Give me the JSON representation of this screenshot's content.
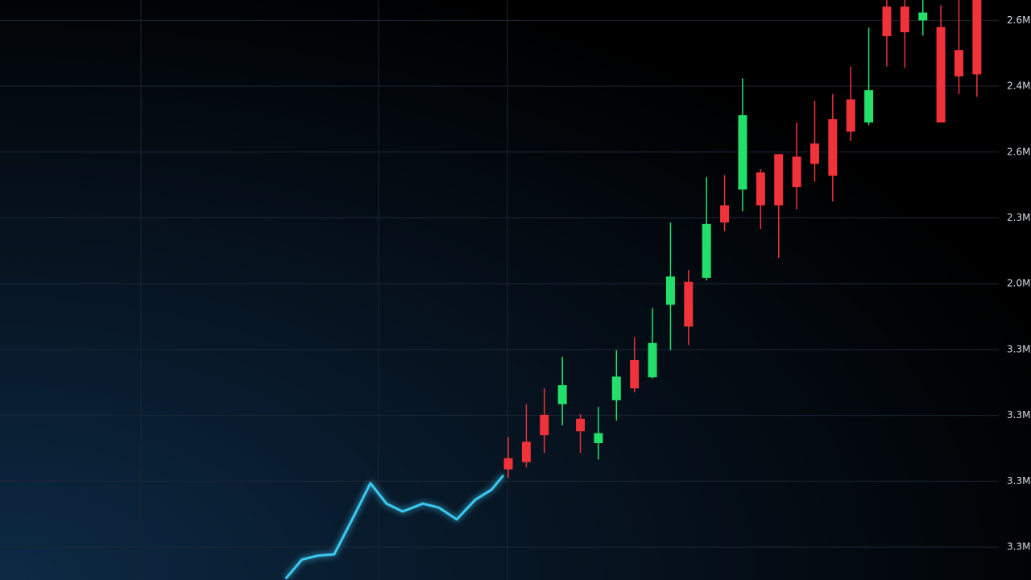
{
  "chart_data": {
    "type": "candlestick",
    "x": [
      0,
      1,
      2,
      3,
      4,
      5,
      6,
      7,
      8,
      9,
      10,
      11,
      12,
      13,
      14,
      15,
      16,
      17,
      18,
      19,
      20,
      21,
      22,
      23,
      24,
      25,
      26
    ],
    "open": [
      2.35,
      2.6,
      3.01,
      3.17,
      2.95,
      2.58,
      3.23,
      3.84,
      3.58,
      4.68,
      5.03,
      5.09,
      6.19,
      6.43,
      6.69,
      6.97,
      6.93,
      7.13,
      7.5,
      7.8,
      7.45,
      9.21,
      9.21,
      9.0,
      8.9,
      8.55,
      9.31
    ],
    "high": [
      2.67,
      3.17,
      3.41,
      3.89,
      3.02,
      3.13,
      3.99,
      4.19,
      4.63,
      5.93,
      5.21,
      6.62,
      6.65,
      8.12,
      6.74,
      6.97,
      7.45,
      7.78,
      7.88,
      8.3,
      8.89,
      9.31,
      9.31,
      9.31,
      9.23,
      9.31,
      9.31
    ],
    "low": [
      2.05,
      2.21,
      2.43,
      2.85,
      2.43,
      2.33,
      2.92,
      3.35,
      3.56,
      3.99,
      4.07,
      5.05,
      5.8,
      6.1,
      5.83,
      5.39,
      6.13,
      6.55,
      6.25,
      7.17,
      7.41,
      8.3,
      8.28,
      8.77,
      7.45,
      7.88,
      7.84
    ],
    "close": [
      2.18,
      2.29,
      2.7,
      3.46,
      2.76,
      2.73,
      3.59,
      3.41,
      4.1,
      5.11,
      4.35,
      5.91,
      5.93,
      7.56,
      6.19,
      6.19,
      6.47,
      6.82,
      6.64,
      7.31,
      7.94,
      8.76,
      8.82,
      9.12,
      7.45,
      8.15,
      8.18
    ],
    "up_color": "#22e06a",
    "down_color": "#f0323a",
    "line": {
      "color": "#3cc8f0",
      "x": [
        -12.35,
        -11.45,
        -10.56,
        -9.66,
        -8.55,
        -7.65,
        -6.76,
        -5.86,
        -4.74,
        -3.85,
        -2.86,
        -1.83,
        -0.94,
        -0.27
      ],
      "values": [
        0.52,
        0.81,
        0.87,
        0.89,
        1.48,
        1.97,
        1.66,
        1.54,
        1.66,
        1.6,
        1.42,
        1.72,
        1.87,
        2.09
      ]
    },
    "xlim": [
      -28.2,
      29.0
    ],
    "ylim": [
      0.5,
      9.31
    ],
    "yticks": [
      {
        "value": 1,
        "label": "3.3M"
      },
      {
        "value": 2,
        "label": "3.3M"
      },
      {
        "value": 3,
        "label": "3.3M"
      },
      {
        "value": 4,
        "label": "3.3M"
      },
      {
        "value": 5,
        "label": "2.0M"
      },
      {
        "value": 6,
        "label": "2.3M"
      },
      {
        "value": 7,
        "label": "2.6M"
      },
      {
        "value": 8,
        "label": "2.4M"
      },
      {
        "value": 9,
        "label": "2.6M"
      }
    ],
    "grid": true
  }
}
